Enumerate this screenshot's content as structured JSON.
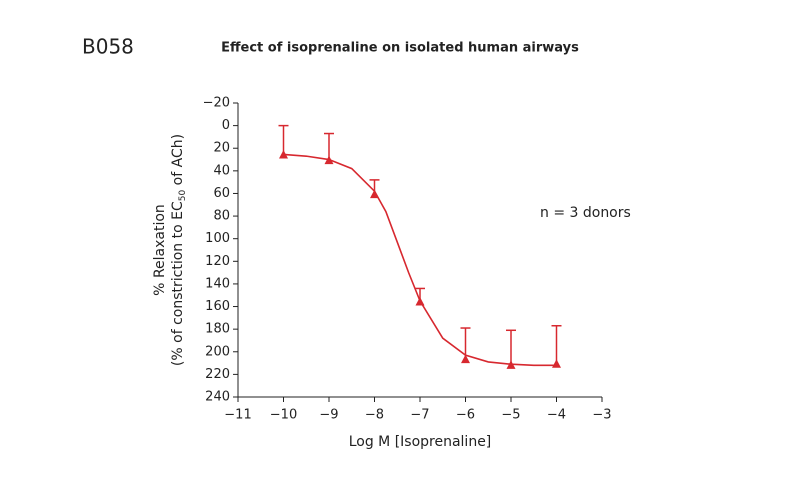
{
  "chart_data": {
    "type": "line",
    "annotation": "B058",
    "title": "Effect of isoprenaline on isolated human airways",
    "note": "n = 3 donors",
    "xlabel": "Log M [Isoprenaline]",
    "ylabel": [
      "% Relaxation",
      "(% of constriction to EC",
      "50",
      " of ACh)"
    ],
    "color": "#d7282f",
    "ylim": [
      -20,
      240
    ],
    "y_inverted": true,
    "yticks": [
      {
        "value": -20,
        "label": "−20"
      },
      0,
      20,
      40,
      60,
      80,
      100,
      120,
      140,
      160,
      180,
      200,
      220,
      240
    ],
    "xlim": [
      -11,
      -3
    ],
    "xticks": [
      {
        "value": -11,
        "label": "−11"
      },
      {
        "value": -10,
        "label": "−10"
      },
      {
        "value": -9,
        "label": "−9"
      },
      {
        "value": -8,
        "label": "−8"
      },
      {
        "value": -7,
        "label": "−7"
      },
      {
        "value": -6,
        "label": "−6"
      },
      {
        "value": -5,
        "label": "−5"
      },
      {
        "value": -4,
        "label": "−4"
      },
      {
        "value": -3,
        "label": "−3"
      }
    ],
    "x": [
      -10,
      -9,
      -8,
      -7,
      -6,
      -5,
      -4
    ],
    "values": [
      26,
      31,
      61,
      156,
      207,
      212,
      211
    ],
    "errors": [
      26,
      24,
      13,
      12,
      28,
      31,
      34
    ],
    "fit": {
      "x": [
        -10,
        -9.5,
        -9,
        -8.5,
        -8,
        -7.75,
        -7.5,
        -7.25,
        -7,
        -6.5,
        -6,
        -5.5,
        -5,
        -4.5,
        -4
      ],
      "values": [
        25.5,
        27,
        30,
        38,
        58,
        76,
        103,
        130,
        155,
        188,
        203,
        209,
        211,
        212,
        212
      ]
    }
  }
}
